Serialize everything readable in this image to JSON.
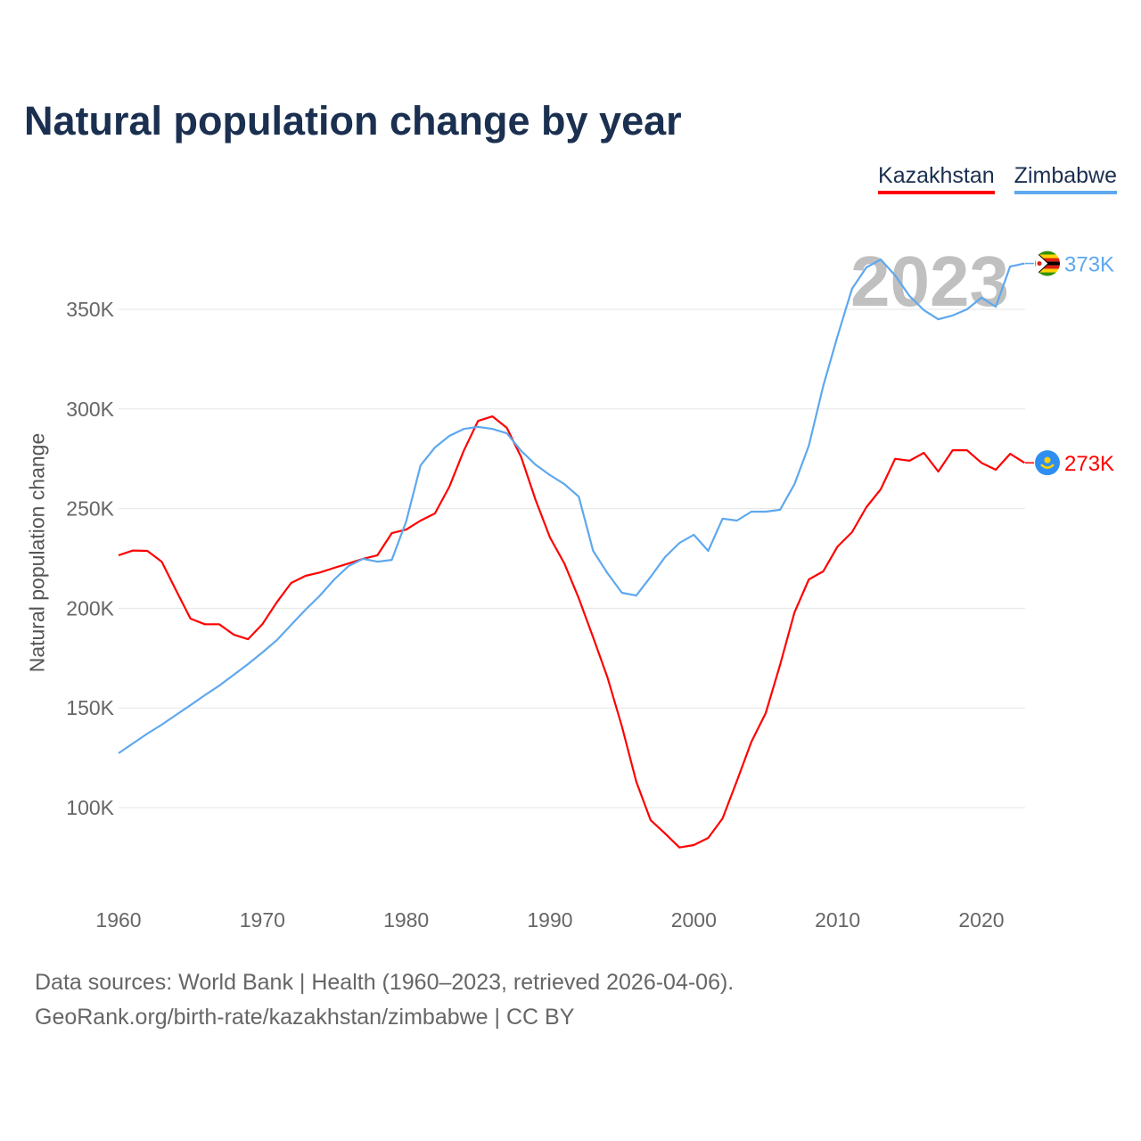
{
  "title": "Natural population change by year",
  "source_line": "Data sources: World Bank | Health (1960–2023, retrieved 2026-04-06).",
  "credit_line": "GeoRank.org/birth-rate/kazakhstan/zimbabwe | CC BY",
  "chart_data": {
    "type": "line",
    "title": "Natural population change by year",
    "xlabel": "",
    "ylabel": "Natural population change",
    "year_watermark": "2023",
    "xlim": [
      1960,
      2023
    ],
    "ylim": [
      60000,
      390000
    ],
    "x_ticks": [
      1960,
      1970,
      1980,
      1990,
      2000,
      2010,
      2020
    ],
    "y_ticks": [
      100000,
      150000,
      200000,
      250000,
      300000,
      350000
    ],
    "y_tick_labels": [
      "100K",
      "150K",
      "200K",
      "250K",
      "300K",
      "350K"
    ],
    "grid": true,
    "legend_position": "top-right",
    "x": [
      1960,
      1961,
      1962,
      1963,
      1964,
      1965,
      1966,
      1967,
      1968,
      1969,
      1970,
      1971,
      1972,
      1973,
      1974,
      1975,
      1976,
      1977,
      1978,
      1979,
      1980,
      1981,
      1982,
      1983,
      1984,
      1985,
      1986,
      1987,
      1988,
      1989,
      1990,
      1991,
      1992,
      1993,
      1994,
      1995,
      1996,
      1997,
      1998,
      1999,
      2000,
      2001,
      2002,
      2003,
      2004,
      2005,
      2006,
      2007,
      2008,
      2009,
      2010,
      2011,
      2012,
      2013,
      2014,
      2015,
      2016,
      2017,
      2018,
      2019,
      2020,
      2021,
      2022,
      2023
    ],
    "series": [
      {
        "name": "Kazakhstan",
        "color": "#ff0000",
        "end_label": "273K",
        "flag": "kazakhstan-flag",
        "values": [
          226600,
          229000,
          228800,
          223400,
          209000,
          194800,
          192000,
          192000,
          186800,
          184500,
          192000,
          203000,
          212700,
          216300,
          218000,
          220300,
          222500,
          224800,
          226600,
          237700,
          239500,
          244000,
          247600,
          261000,
          279000,
          294000,
          296300,
          290500,
          275800,
          254300,
          235500,
          222500,
          205000,
          185400,
          165300,
          140700,
          113000,
          93700,
          87000,
          80000,
          81200,
          84800,
          94600,
          113400,
          133000,
          147400,
          171600,
          198000,
          214500,
          218500,
          231000,
          238200,
          250700,
          259700,
          275000,
          274000,
          278000,
          268600,
          279300,
          279300,
          273000,
          269500,
          277500,
          273000
        ]
      },
      {
        "name": "Zimbabwe",
        "color": "#5ea8ee",
        "end_label": "373K",
        "flag": "zimbabwe-flag",
        "values": [
          127300,
          132200,
          137100,
          141600,
          146500,
          151400,
          156400,
          161200,
          166600,
          172000,
          177800,
          184000,
          191700,
          199300,
          206400,
          214500,
          221200,
          224800,
          223400,
          224300,
          243600,
          271700,
          280700,
          286500,
          290000,
          291000,
          290000,
          287800,
          279000,
          272000,
          266800,
          262300,
          256000,
          228800,
          217600,
          207800,
          206400,
          215800,
          225700,
          232800,
          236900,
          228800,
          245000,
          244000,
          248500,
          248500,
          249400,
          262300,
          281600,
          311500,
          336600,
          360300,
          371000,
          375000,
          367000,
          356700,
          349600,
          345000,
          346900,
          350000,
          355800,
          351300,
          371500,
          373000
        ]
      }
    ]
  }
}
